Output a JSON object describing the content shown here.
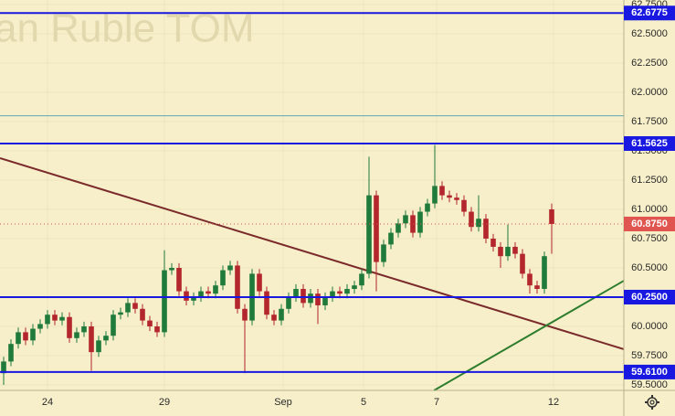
{
  "chart_data": {
    "type": "candlestick",
    "title": "an Ruble TOM",
    "x": [
      0,
      1,
      2,
      3,
      4,
      5,
      6,
      7,
      8,
      9,
      10,
      11,
      12,
      13,
      14,
      15,
      16,
      17,
      18,
      19,
      20,
      21,
      22,
      23,
      24,
      25,
      26,
      27,
      28,
      29,
      30,
      31,
      32,
      33,
      34,
      35,
      36,
      37,
      38,
      39,
      40,
      41,
      42,
      43,
      44,
      45,
      46,
      47,
      48,
      49,
      50,
      51,
      52,
      53,
      54,
      55,
      56,
      57,
      58,
      59,
      60,
      61,
      62,
      63,
      64,
      65,
      66,
      67,
      68,
      69,
      70,
      71,
      72,
      73,
      74,
      75
    ],
    "open": [
      59.6,
      59.7,
      59.85,
      59.95,
      59.88,
      59.98,
      60.02,
      60.1,
      60.05,
      60.08,
      59.9,
      59.95,
      60.0,
      59.78,
      59.88,
      59.92,
      60.1,
      60.12,
      60.2,
      60.15,
      60.05,
      60.0,
      59.95,
      60.48,
      60.5,
      60.3,
      60.22,
      60.25,
      60.3,
      60.28,
      60.35,
      60.48,
      60.52,
      60.15,
      60.05,
      60.45,
      60.3,
      60.1,
      60.05,
      60.15,
      60.25,
      60.32,
      60.2,
      60.28,
      60.18,
      60.25,
      60.3,
      60.28,
      60.32,
      60.35,
      60.45,
      61.12,
      60.55,
      60.7,
      60.8,
      60.88,
      60.95,
      60.8,
      60.98,
      61.05,
      61.2,
      61.12,
      61.1,
      61.08,
      60.98,
      60.85,
      60.92,
      60.75,
      60.68,
      60.6,
      60.68,
      60.62,
      60.45,
      60.35,
      60.32,
      61.0
    ],
    "high": [
      59.74,
      59.89,
      59.99,
      59.99,
      60.02,
      60.06,
      60.14,
      60.14,
      60.12,
      60.12,
      59.99,
      60.04,
      60.04,
      59.92,
      59.96,
      60.14,
      60.16,
      60.24,
      60.24,
      60.19,
      60.09,
      60.04,
      60.65,
      60.54,
      60.54,
      60.34,
      60.29,
      60.34,
      60.34,
      60.39,
      60.52,
      60.56,
      60.56,
      60.19,
      60.49,
      60.49,
      60.34,
      60.14,
      60.19,
      60.29,
      60.36,
      60.36,
      60.32,
      60.32,
      60.29,
      60.34,
      60.34,
      60.36,
      60.39,
      60.49,
      61.45,
      61.16,
      60.74,
      60.84,
      60.92,
      60.99,
      60.99,
      61.02,
      61.09,
      61.55,
      61.24,
      61.16,
      61.14,
      61.12,
      61.02,
      61.12,
      60.96,
      60.79,
      60.72,
      60.87,
      60.72,
      60.66,
      60.49,
      60.39,
      60.64,
      61.05
    ],
    "low": [
      59.5,
      59.66,
      59.81,
      59.84,
      59.84,
      59.94,
      59.98,
      60.01,
      60.01,
      59.86,
      59.86,
      59.91,
      59.62,
      59.74,
      59.84,
      59.88,
      60.06,
      60.08,
      60.11,
      60.01,
      59.96,
      59.91,
      59.91,
      60.44,
      60.26,
      60.18,
      60.18,
      60.21,
      60.24,
      60.24,
      60.31,
      60.44,
      60.11,
      59.6,
      60.01,
      60.26,
      60.06,
      60.01,
      60.01,
      60.11,
      60.21,
      60.16,
      60.16,
      60.02,
      60.14,
      60.21,
      60.24,
      60.24,
      60.28,
      60.31,
      60.41,
      60.3,
      60.51,
      60.66,
      60.76,
      60.84,
      60.76,
      60.76,
      60.94,
      61.01,
      61.08,
      61.06,
      61.04,
      60.94,
      60.81,
      60.81,
      60.71,
      60.64,
      60.5,
      60.56,
      60.58,
      60.41,
      60.28,
      60.28,
      60.28,
      60.62
    ],
    "close": [
      59.7,
      59.85,
      59.95,
      59.88,
      59.98,
      60.02,
      60.1,
      60.05,
      60.08,
      59.9,
      59.95,
      60.0,
      59.78,
      59.88,
      59.92,
      60.1,
      60.12,
      60.2,
      60.15,
      60.05,
      60.0,
      59.95,
      60.48,
      60.5,
      60.3,
      60.22,
      60.25,
      60.3,
      60.28,
      60.35,
      60.48,
      60.52,
      60.15,
      60.05,
      60.45,
      60.3,
      60.1,
      60.05,
      60.15,
      60.25,
      60.32,
      60.2,
      60.28,
      60.18,
      60.25,
      60.3,
      60.28,
      60.32,
      60.35,
      60.45,
      61.12,
      60.55,
      60.7,
      60.8,
      60.88,
      60.95,
      60.8,
      60.98,
      61.05,
      61.2,
      61.12,
      61.1,
      61.08,
      60.98,
      60.85,
      60.92,
      60.75,
      60.68,
      60.6,
      60.68,
      60.62,
      60.45,
      60.35,
      60.32,
      60.6,
      60.875
    ],
    "up_color": "#1f7a3c",
    "down_color": "#b3262c",
    "xlim": [
      -0.5,
      84.875
    ],
    "ylim": [
      59.453,
      62.789
    ],
    "xticks": [
      {
        "value": 6,
        "label": "24"
      },
      {
        "value": 22,
        "label": "29"
      },
      {
        "value": 38.25,
        "label": "Sep"
      },
      {
        "value": 49.25,
        "label": "5"
      },
      {
        "value": 59.25,
        "label": "7"
      },
      {
        "value": 75.25,
        "label": "12"
      }
    ],
    "yticks": [
      {
        "value": 62.75,
        "label": "62.7500"
      },
      {
        "value": 62.5,
        "label": "62.5000"
      },
      {
        "value": 62.25,
        "label": "62.2500"
      },
      {
        "value": 62.0,
        "label": "62.0000"
      },
      {
        "value": 61.75,
        "label": "61.7500"
      },
      {
        "value": 61.5,
        "label": "61.5000"
      },
      {
        "value": 61.25,
        "label": "61.2500"
      },
      {
        "value": 61.0,
        "label": "61.0000"
      },
      {
        "value": 60.75,
        "label": "60.7500"
      },
      {
        "value": 60.5,
        "label": "60.5000"
      },
      {
        "value": 60.0,
        "label": "60.0000"
      },
      {
        "value": 59.75,
        "label": "59.7500"
      },
      {
        "value": 59.5,
        "label": "59.5000"
      }
    ],
    "grid": true,
    "levels": [
      {
        "value": 62.6775,
        "color": "#1818e0",
        "width": 2,
        "badge": true
      },
      {
        "value": 61.8,
        "color": "#5aa8b8",
        "width": 1,
        "badge": false
      },
      {
        "value": 61.5625,
        "color": "#1818e0",
        "width": 2,
        "badge": true
      },
      {
        "value": 60.875,
        "label": "60.8750",
        "color": "#e0554f",
        "width": 1,
        "dash": "1 3",
        "badge": true
      },
      {
        "value": 60.25,
        "label": "60.2500",
        "color": "#1818e0",
        "width": 2,
        "badge": true
      },
      {
        "value": 59.61,
        "label": "59.6100",
        "color": "#1818e0",
        "width": 2,
        "badge": true
      }
    ],
    "trendlines": [
      {
        "x": [
          -0.5,
          84.875
        ],
        "y": [
          61.4375,
          59.805
        ],
        "color": "#7a2a2a"
      },
      {
        "x": [
          58.9,
          84.875
        ],
        "y": [
          59.453,
          60.39
        ],
        "color": "#2e7d2e"
      }
    ]
  }
}
